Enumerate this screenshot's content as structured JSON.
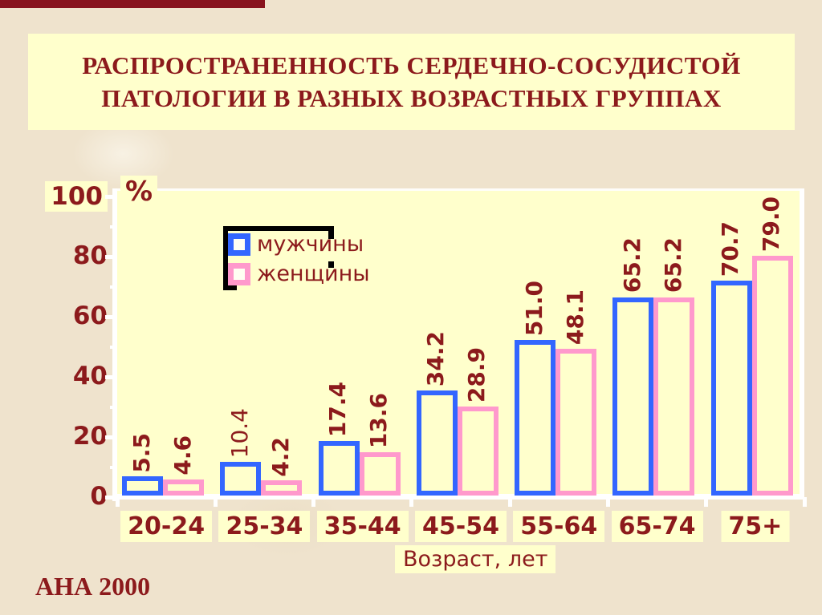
{
  "slide": {
    "title_line1": "РАСПРОСТРАНЕННОСТЬ СЕРДЕЧНО-СОСУДИСТОЙ",
    "title_line2": "ПАТОЛОГИИ В РАЗНЫХ ВОЗРАСТНЫХ ГРУППАХ",
    "footnote": "АНА 2000"
  },
  "colors": {
    "background_beige": "#EFE3CD",
    "panel_yellow": "#FFFFCC",
    "text_maroon": "#8C1A1C",
    "men_blue": "#3366FF",
    "women_pink": "#FF99CC",
    "axis_white": "#FFFFFF",
    "legend_frame_black": "#000000",
    "top_bar_red": "#88131E"
  },
  "chart_data": {
    "type": "bar",
    "title": "РАСПРОСТРАНЕННОСТЬ СЕРДЕЧНО-СОСУДИСТОЙ ПАТОЛОГИИ В РАЗНЫХ ВОЗРАСТНЫХ ГРУППАХ",
    "categories": [
      "20-24",
      "25-34",
      "35-44",
      "45-54",
      "55-64",
      "65-74",
      "75+"
    ],
    "series": [
      {
        "name": "мужчины",
        "color": "#3366FF",
        "values": [
          5.5,
          10.4,
          17.4,
          34.2,
          51.0,
          65.2,
          70.7
        ]
      },
      {
        "name": "женщины",
        "color": "#FF99CC",
        "values": [
          4.6,
          4.2,
          13.6,
          28.9,
          48.1,
          65.2,
          79.0
        ]
      }
    ],
    "thin_value_labels": [
      "10.4"
    ],
    "xlabel": "Возраст, лет",
    "ylabel": "%",
    "ylim": [
      0,
      100
    ],
    "yticks": [
      0,
      20,
      40,
      60,
      80,
      100
    ],
    "minor_yticks": [
      10,
      30,
      50,
      70,
      90
    ],
    "grid": false,
    "legend_position": "top-left-inside",
    "value_labels_rotated": true,
    "source_note": "АНА 2000"
  }
}
